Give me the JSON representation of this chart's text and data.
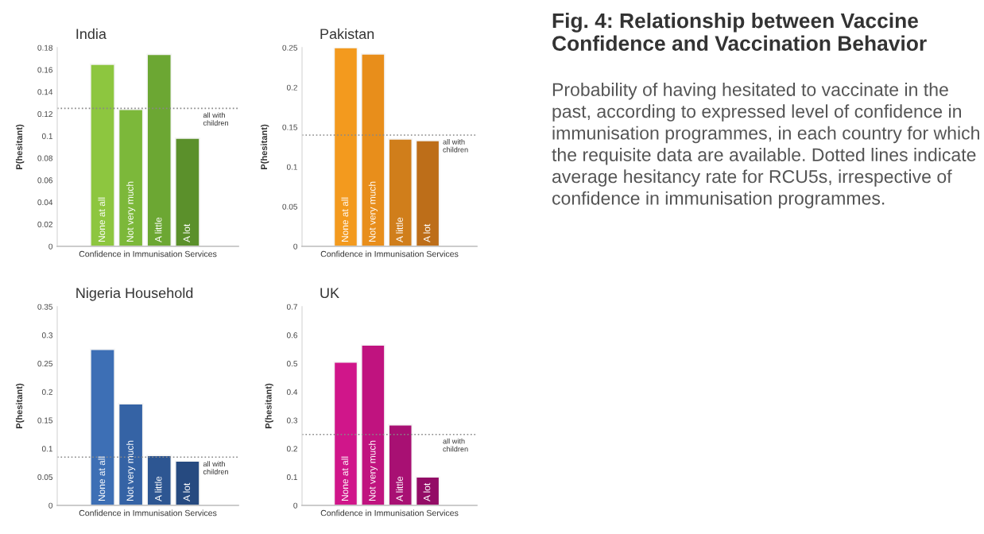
{
  "chart_data": [
    {
      "type": "bar",
      "title": "India",
      "xlabel": "Confidence in Immunisation Services",
      "ylabel": "P(hesitant)",
      "categories": [
        "None at all",
        "Not very much",
        "A little",
        "A lot"
      ],
      "values": [
        0.165,
        0.124,
        0.174,
        0.098
      ],
      "colors": [
        "#8dc63f",
        "#7cb83a",
        "#6ca733",
        "#5b902b"
      ],
      "ylim": [
        0,
        0.18
      ],
      "yticks": [
        0,
        0.02,
        0.04,
        0.06,
        0.08,
        0.1,
        0.12,
        0.14,
        0.16,
        0.18
      ],
      "ref_lines": [
        {
          "axis": "y",
          "value": 0.125,
          "label": "all with\nchildren",
          "color": "#888888",
          "line_style": "dotted"
        }
      ]
    },
    {
      "type": "bar",
      "title": "Pakistan",
      "xlabel": "Confidence in Immunisation Services",
      "ylabel": "P(hesitant)",
      "categories": [
        "None at all",
        "Not very much",
        "A little",
        "A lot"
      ],
      "values": [
        0.25,
        0.242,
        0.135,
        0.133
      ],
      "colors": [
        "#f39a1e",
        "#e88e1b",
        "#d07e1b",
        "#bd6e19"
      ],
      "ylim": [
        0,
        0.25
      ],
      "yticks": [
        0,
        0.05,
        0.1,
        0.15,
        0.2,
        0.25
      ],
      "ref_lines": [
        {
          "axis": "y",
          "value": 0.14,
          "label": "all with\nchildren",
          "color": "#888888",
          "line_style": "dotted"
        }
      ]
    },
    {
      "type": "bar",
      "title": "Nigeria Household",
      "xlabel": "Confidence in Immunisation Services",
      "ylabel": "P(hesitant)",
      "categories": [
        "None at all",
        "Not very much",
        "A little",
        "A lot"
      ],
      "values": [
        0.275,
        0.179,
        0.088,
        0.078
      ],
      "colors": [
        "#3d6fb5",
        "#3563a5",
        "#2d5692",
        "#264a80"
      ],
      "ylim": [
        0,
        0.35
      ],
      "yticks": [
        0,
        0.05,
        0.1,
        0.15,
        0.2,
        0.25,
        0.3,
        0.35
      ],
      "ref_lines": [
        {
          "axis": "y",
          "value": 0.085,
          "label": "all with\nchildren",
          "color": "#888888",
          "line_style": "dotted"
        }
      ]
    },
    {
      "type": "bar",
      "title": "UK",
      "xlabel": "Confidence in Immunisation Services",
      "ylabel": "P(hesitant)",
      "categories": [
        "None at all",
        "Not very much",
        "A little",
        "A lot"
      ],
      "values": [
        0.505,
        0.565,
        0.284,
        0.1
      ],
      "colors": [
        "#d0168a",
        "#c0137f",
        "#a81073",
        "#930c66"
      ],
      "ylim": [
        0,
        0.7
      ],
      "yticks": [
        0,
        0.1,
        0.2,
        0.3,
        0.4,
        0.5,
        0.6,
        0.7
      ],
      "ref_lines": [
        {
          "axis": "y",
          "value": 0.25,
          "label": "all with\nchildren",
          "color": "#888888",
          "line_style": "dotted"
        }
      ]
    },
    {
      "type": "other",
      "title": "Fig. 4: Relationship between Vaccine Confidence and Vaccination Behavior",
      "subtitle": "Probability of having hesitated to vaccinate in the past, according to expressed level of confidence in immunisation programmes, in each country for which the requisite data are available. Dotted lines indicate average hesitancy rate for RCU5s, irrespective of confidence in immunisation programmes."
    }
  ]
}
